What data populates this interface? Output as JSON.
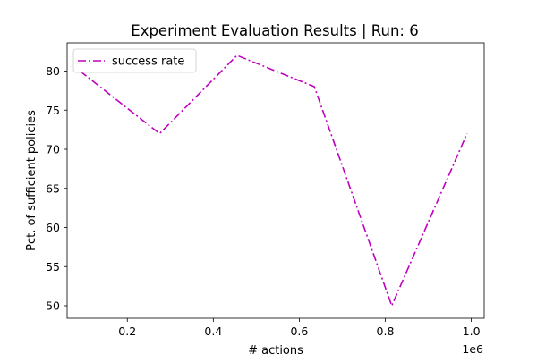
{
  "chart_data": {
    "type": "line",
    "title": "Experiment Evaluation Results | Run: 6",
    "xlabel": "# actions",
    "ylabel": "Pct. of sufficient policies",
    "x_offset_label": "1e6",
    "xlim": [
      0.06,
      1.03
    ],
    "ylim": [
      48.4,
      83.6
    ],
    "x_ticks": [
      0.2,
      0.4,
      0.6,
      0.8,
      1.0
    ],
    "x_tick_labels": [
      "0.2",
      "0.4",
      "0.6",
      "0.8",
      "1.0"
    ],
    "y_ticks": [
      50,
      55,
      60,
      65,
      70,
      75,
      80
    ],
    "y_tick_labels": [
      "50",
      "55",
      "60",
      "65",
      "70",
      "75",
      "80"
    ],
    "grid": false,
    "legend_position": "upper-left",
    "series": [
      {
        "name": "success rate",
        "color": "#bf00bf",
        "line_style": "dash-dot",
        "x": [
          0.09,
          0.275,
          0.455,
          0.635,
          0.815,
          0.99
        ],
        "y": [
          80,
          72,
          82,
          78,
          50,
          72
        ]
      }
    ]
  }
}
